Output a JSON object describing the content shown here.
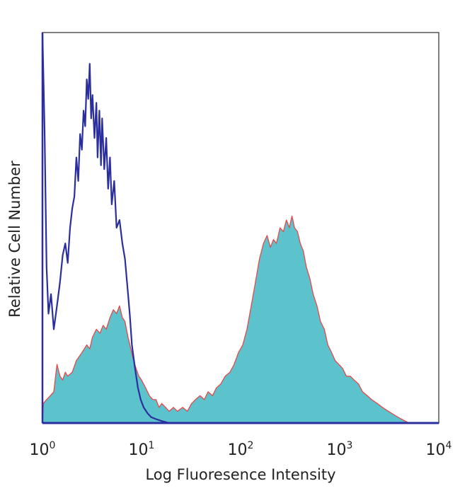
{
  "chart_data": {
    "type": "area",
    "title": "",
    "xlabel": "Log Fluoresence Intensity",
    "ylabel": "Relative Cell Number",
    "x_scale": "log10",
    "xlim": [
      1,
      10000
    ],
    "ylim": [
      0,
      100
    ],
    "x_ticks": [
      {
        "base": "10",
        "exp": "0"
      },
      {
        "base": "10",
        "exp": "1"
      },
      {
        "base": "10",
        "exp": "2"
      },
      {
        "base": "10",
        "exp": "3"
      },
      {
        "base": "10",
        "exp": "4"
      }
    ],
    "grid": false,
    "legend": "none",
    "series": [
      {
        "style": "line",
        "color": "#2b2f9e",
        "points": [
          [
            1.0,
            100
          ],
          [
            1.05,
            75
          ],
          [
            1.1,
            40
          ],
          [
            1.15,
            28
          ],
          [
            1.22,
            33
          ],
          [
            1.3,
            24
          ],
          [
            1.4,
            30
          ],
          [
            1.5,
            36
          ],
          [
            1.6,
            43
          ],
          [
            1.7,
            46
          ],
          [
            1.8,
            41
          ],
          [
            1.9,
            50
          ],
          [
            2.0,
            55
          ],
          [
            2.1,
            58
          ],
          [
            2.2,
            68
          ],
          [
            2.3,
            62
          ],
          [
            2.4,
            74
          ],
          [
            2.5,
            70
          ],
          [
            2.6,
            80
          ],
          [
            2.7,
            76
          ],
          [
            2.8,
            88
          ],
          [
            2.9,
            83
          ],
          [
            3.0,
            92
          ],
          [
            3.1,
            78
          ],
          [
            3.2,
            84
          ],
          [
            3.35,
            73
          ],
          [
            3.5,
            82
          ],
          [
            3.6,
            68
          ],
          [
            3.75,
            80
          ],
          [
            3.9,
            66
          ],
          [
            4.0,
            78
          ],
          [
            4.2,
            65
          ],
          [
            4.4,
            73
          ],
          [
            4.6,
            60
          ],
          [
            4.8,
            68
          ],
          [
            5.0,
            56
          ],
          [
            5.3,
            62
          ],
          [
            5.6,
            50
          ],
          [
            6.0,
            52
          ],
          [
            6.4,
            46
          ],
          [
            6.8,
            42
          ],
          [
            7.2,
            35
          ],
          [
            7.6,
            28
          ],
          [
            8.0,
            20
          ],
          [
            8.6,
            14
          ],
          [
            9.2,
            9
          ],
          [
            9.8,
            6
          ],
          [
            10.5,
            4
          ],
          [
            11.5,
            2.5
          ],
          [
            12.5,
            1.5
          ],
          [
            14,
            1
          ],
          [
            16,
            0.5
          ],
          [
            19,
            0
          ]
        ]
      },
      {
        "style": "filled",
        "fill": "#5cc3cc",
        "outline": "#e8474a",
        "points": [
          [
            1.0,
            0
          ],
          [
            1.02,
            5
          ],
          [
            1.1,
            6
          ],
          [
            1.2,
            7
          ],
          [
            1.3,
            8
          ],
          [
            1.4,
            15
          ],
          [
            1.5,
            12
          ],
          [
            1.6,
            11
          ],
          [
            1.7,
            13
          ],
          [
            1.8,
            12
          ],
          [
            2.0,
            13
          ],
          [
            2.2,
            16
          ],
          [
            2.5,
            18
          ],
          [
            2.8,
            20
          ],
          [
            3.0,
            19
          ],
          [
            3.2,
            22
          ],
          [
            3.5,
            24
          ],
          [
            3.8,
            23
          ],
          [
            4.1,
            25
          ],
          [
            4.4,
            24
          ],
          [
            4.8,
            27
          ],
          [
            5.2,
            29
          ],
          [
            5.6,
            28
          ],
          [
            6.0,
            30
          ],
          [
            6.4,
            27
          ],
          [
            6.8,
            26
          ],
          [
            7.3,
            22
          ],
          [
            7.8,
            19
          ],
          [
            8.3,
            16
          ],
          [
            8.8,
            14
          ],
          [
            9.4,
            12
          ],
          [
            10.0,
            11
          ],
          [
            11,
            9
          ],
          [
            12,
            7
          ],
          [
            13,
            6
          ],
          [
            14,
            6
          ],
          [
            15,
            4
          ],
          [
            16,
            5
          ],
          [
            17.5,
            4
          ],
          [
            19,
            3
          ],
          [
            21,
            4
          ],
          [
            23,
            3
          ],
          [
            26,
            4
          ],
          [
            29,
            3
          ],
          [
            32,
            5
          ],
          [
            35,
            6
          ],
          [
            39,
            7
          ],
          [
            43,
            6
          ],
          [
            47,
            8
          ],
          [
            52,
            7
          ],
          [
            57,
            9
          ],
          [
            63,
            10
          ],
          [
            70,
            12
          ],
          [
            78,
            13
          ],
          [
            86,
            15
          ],
          [
            95,
            18
          ],
          [
            105,
            20
          ],
          [
            116,
            24
          ],
          [
            128,
            30
          ],
          [
            141,
            36
          ],
          [
            155,
            42
          ],
          [
            170,
            46
          ],
          [
            185,
            48
          ],
          [
            200,
            45
          ],
          [
            215,
            47
          ],
          [
            230,
            46
          ],
          [
            250,
            50
          ],
          [
            270,
            49
          ],
          [
            290,
            52
          ],
          [
            310,
            50
          ],
          [
            330,
            53
          ],
          [
            350,
            50
          ],
          [
            375,
            49
          ],
          [
            400,
            46
          ],
          [
            430,
            44
          ],
          [
            460,
            40
          ],
          [
            500,
            37
          ],
          [
            540,
            33
          ],
          [
            590,
            30
          ],
          [
            640,
            26
          ],
          [
            700,
            24
          ],
          [
            760,
            20
          ],
          [
            830,
            18
          ],
          [
            900,
            16
          ],
          [
            980,
            15
          ],
          [
            1070,
            14
          ],
          [
            1170,
            12
          ],
          [
            1280,
            12
          ],
          [
            1400,
            11
          ],
          [
            1550,
            10
          ],
          [
            1700,
            8
          ],
          [
            1900,
            7
          ],
          [
            2100,
            6
          ],
          [
            2400,
            5
          ],
          [
            2700,
            4
          ],
          [
            3100,
            3
          ],
          [
            3600,
            2
          ],
          [
            4200,
            1
          ],
          [
            5000,
            0
          ]
        ]
      }
    ]
  }
}
